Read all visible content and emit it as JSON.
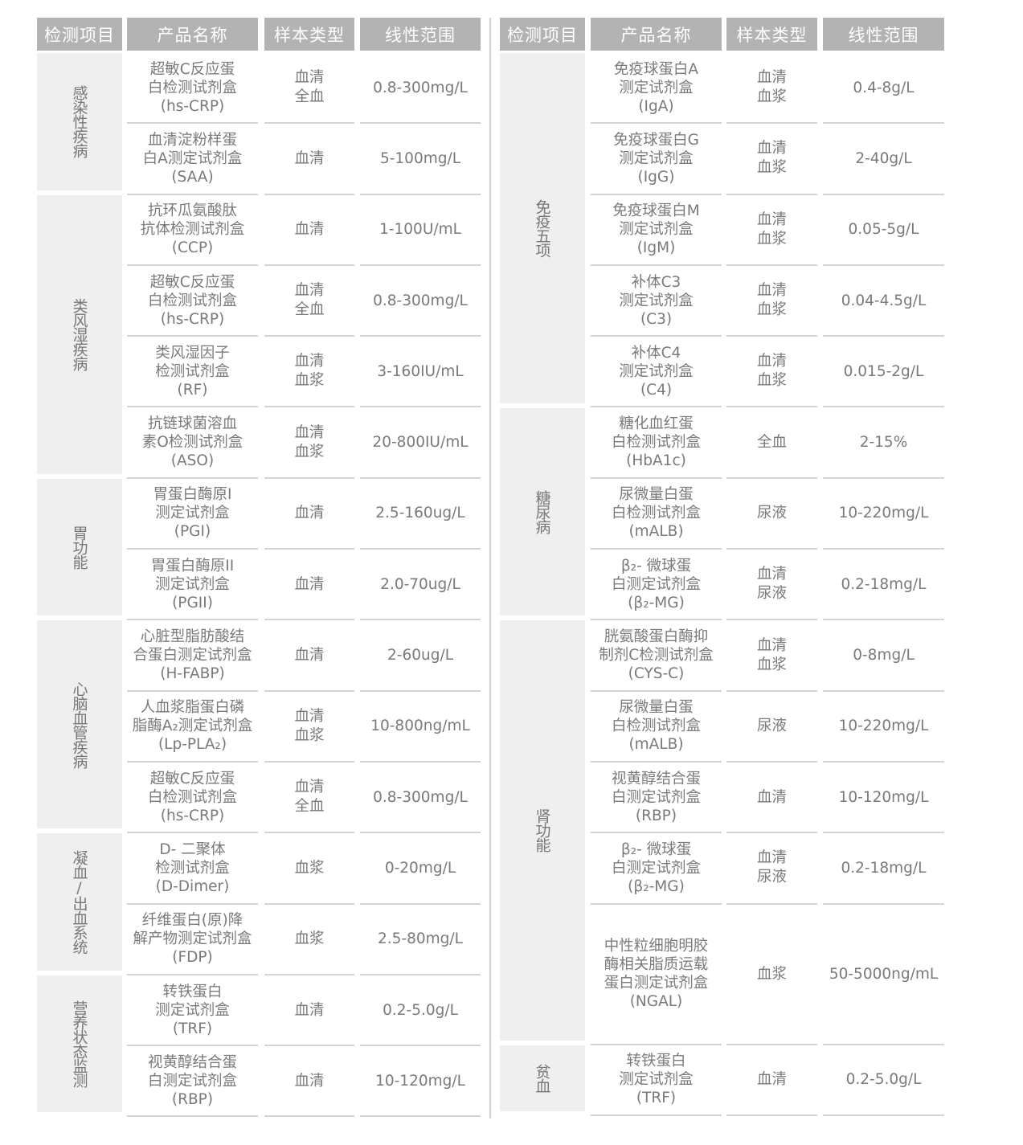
{
  "headers": [
    "检测项目",
    "产品名称",
    "样本类型",
    "线性范围"
  ],
  "left": [
    {
      "category": "感染性疾病",
      "rows": [
        {
          "name": [
            "超敏C反应蛋",
            "白检测试剂盒",
            "(hs-CRP)"
          ],
          "sample": [
            "血清",
            "全血"
          ],
          "range": "0.8-300mg/L"
        },
        {
          "name": [
            "血清淀粉样蛋",
            "白A测定试剂盒",
            "(SAA)"
          ],
          "sample": [
            "血清"
          ],
          "range": "5-100mg/L"
        }
      ]
    },
    {
      "category": "类风湿疾病",
      "rows": [
        {
          "name": [
            "抗环瓜氨酸肽",
            "抗体检测试剂盒",
            "(CCP)"
          ],
          "sample": [
            "血清"
          ],
          "range": "1-100U/mL"
        },
        {
          "name": [
            "超敏C反应蛋",
            "白检测试剂盒",
            "(hs-CRP)"
          ],
          "sample": [
            "血清",
            "全血"
          ],
          "range": "0.8-300mg/L"
        },
        {
          "name": [
            "类风湿因子",
            "检测试剂盒",
            "(RF)"
          ],
          "sample": [
            "血清",
            "血浆"
          ],
          "range": "3-160IU/mL"
        },
        {
          "name": [
            "抗链球菌溶血",
            "素O检测试剂盒",
            "(ASO)"
          ],
          "sample": [
            "血清",
            "血浆"
          ],
          "range": "20-800IU/mL"
        }
      ]
    },
    {
      "category": "胃功能",
      "rows": [
        {
          "name": [
            "胃蛋白酶原I",
            "测定试剂盒",
            "(PGI)"
          ],
          "sample": [
            "血清"
          ],
          "range": "2.5-160ug/L"
        },
        {
          "name": [
            "胃蛋白酶原II",
            "测定试剂盒",
            "(PGII)"
          ],
          "sample": [
            "血清"
          ],
          "range": "2.0-70ug/L"
        }
      ]
    },
    {
      "category": "心脑血管疾病",
      "rows": [
        {
          "name": [
            "心脏型脂肪酸结",
            "合蛋白测定试剂盒",
            "(H-FABP)"
          ],
          "sample": [
            "血清"
          ],
          "range": "2-60ug/L"
        },
        {
          "name": [
            "人血浆脂蛋白磷",
            "脂酶A₂测定试剂盒",
            "(Lp-PLA₂)"
          ],
          "sample": [
            "血清",
            "血浆"
          ],
          "range": "10-800ng/mL"
        },
        {
          "name": [
            "超敏C反应蛋",
            "白检测试剂盒",
            "(hs-CRP)"
          ],
          "sample": [
            "血清",
            "全血"
          ],
          "range": "0.8-300mg/L"
        }
      ]
    },
    {
      "category": "凝血/出血系统",
      "rows": [
        {
          "name": [
            "D- 二聚体",
            "检测试剂盒",
            "(D-Dimer)"
          ],
          "sample": [
            "血浆"
          ],
          "range": "0-20mg/L"
        },
        {
          "name": [
            "纤维蛋白(原)降",
            "解产物测定试剂盒",
            "(FDP)"
          ],
          "sample": [
            "血浆"
          ],
          "range": "2.5-80mg/L"
        }
      ]
    },
    {
      "category": "营养状态监测",
      "rows": [
        {
          "name": [
            "转铁蛋白",
            "测定试剂盒",
            "(TRF)"
          ],
          "sample": [
            "血清"
          ],
          "range": "0.2-5.0g/L"
        },
        {
          "name": [
            "视黄醇结合蛋",
            "白测定试剂盒",
            "(RBP)"
          ],
          "sample": [
            "血清"
          ],
          "range": "10-120mg/L"
        }
      ]
    }
  ],
  "right": [
    {
      "category": "免疫五项",
      "rows": [
        {
          "name": [
            "免疫球蛋白A",
            "测定试剂盒",
            "(IgA)"
          ],
          "sample": [
            "血清",
            "血浆"
          ],
          "range": "0.4-8g/L"
        },
        {
          "name": [
            "免疫球蛋白G",
            "测定试剂盒",
            "(IgG)"
          ],
          "sample": [
            "血清",
            "血浆"
          ],
          "range": "2-40g/L"
        },
        {
          "name": [
            "免疫球蛋白M",
            "测定试剂盒",
            "(IgM)"
          ],
          "sample": [
            "血清",
            "血浆"
          ],
          "range": "0.05-5g/L"
        },
        {
          "name": [
            "补体C3",
            "测定试剂盒",
            "(C3)"
          ],
          "sample": [
            "血清",
            "血浆"
          ],
          "range": "0.04-4.5g/L"
        },
        {
          "name": [
            "补体C4",
            "测定试剂盒",
            "(C4)"
          ],
          "sample": [
            "血清",
            "血浆"
          ],
          "range": "0.015-2g/L"
        }
      ]
    },
    {
      "category": "糖尿病",
      "rows": [
        {
          "name": [
            "糖化血红蛋",
            "白检测试剂盒",
            "(HbA1c)"
          ],
          "sample": [
            "全血"
          ],
          "range": "2-15%"
        },
        {
          "name": [
            "尿微量白蛋",
            "白检测试剂盒",
            "(mALB)"
          ],
          "sample": [
            "尿液"
          ],
          "range": "10-220mg/L"
        },
        {
          "name": [
            "β₂- 微球蛋",
            "白测定试剂盒",
            "(β₂-MG)"
          ],
          "sample": [
            "血清",
            "尿液"
          ],
          "range": "0.2-18mg/L"
        }
      ]
    },
    {
      "category": "肾功能",
      "rows": [
        {
          "name": [
            "胱氨酸蛋白酶抑",
            "制剂C检测试剂盒",
            "(CYS-C)"
          ],
          "sample": [
            "血清",
            "血浆"
          ],
          "range": "0-8mg/L"
        },
        {
          "name": [
            "尿微量白蛋",
            "白检测试剂盒",
            "(mALB)"
          ],
          "sample": [
            "尿液"
          ],
          "range": "10-220mg/L"
        },
        {
          "name": [
            "视黄醇结合蛋",
            "白测定试剂盒",
            "(RBP)"
          ],
          "sample": [
            "血清"
          ],
          "range": "10-120mg/L"
        },
        {
          "name": [
            "β₂- 微球蛋",
            "白测定试剂盒",
            "(β₂-MG)"
          ],
          "sample": [
            "血清",
            "尿液"
          ],
          "range": "0.2-18mg/L"
        },
        {
          "name": [
            "中性粒细胞明胶",
            "酶相关脂质运载",
            "蛋白测定试剂盒",
            "(NGAL)"
          ],
          "sample": [
            "血浆"
          ],
          "range": "50-5000ng/mL"
        }
      ]
    },
    {
      "category": "贫血",
      "rows": [
        {
          "name": [
            "转铁蛋白",
            "测定试剂盒",
            "(TRF)"
          ],
          "sample": [
            "血清"
          ],
          "range": "0.2-5.0g/L"
        }
      ]
    }
  ]
}
